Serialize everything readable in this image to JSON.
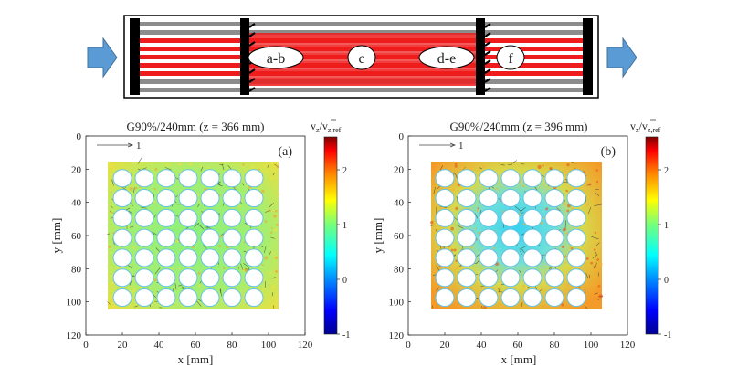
{
  "schematic": {
    "sections": [
      "a-b",
      "c",
      "d-e",
      "f"
    ],
    "colors": {
      "rod_gray": "#8c8c8c",
      "rod_red": "#ee1c1c",
      "arrow": "#5b9bd5"
    }
  },
  "panels": [
    {
      "title": "G90%/240mm (z = 366 mm)",
      "label": "(a)",
      "ref_arrow_label": "1",
      "xlabel": "x [mm]",
      "ylabel": "y [mm]",
      "xticks": [
        "0",
        "20",
        "40",
        "60",
        "80",
        "100",
        "120"
      ],
      "yticks": [
        "0",
        "20",
        "40",
        "60",
        "80",
        "100",
        "120"
      ]
    },
    {
      "title": "G90%/240mm (z = 396 mm)",
      "label": "(b)",
      "ref_arrow_label": "1",
      "xlabel": "x [mm]",
      "ylabel": "y [mm]",
      "xticks": [
        "0",
        "20",
        "40",
        "60",
        "80",
        "100",
        "120"
      ],
      "yticks": [
        "0",
        "20",
        "40",
        "60",
        "80",
        "100",
        "120"
      ]
    }
  ],
  "colorbar": {
    "label_main": "v",
    "label_sub": "z",
    "label_sep": "/",
    "label_bar": "v",
    "label_sub_ref": "z,ref",
    "ticks": [
      "2",
      "1",
      "0",
      "-1"
    ]
  }
}
